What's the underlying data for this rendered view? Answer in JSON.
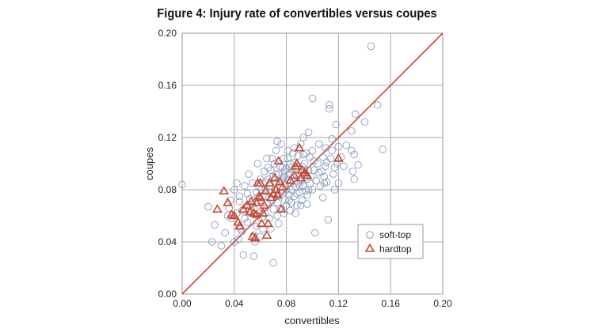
{
  "chart_data": {
    "type": "scatter",
    "title": "Figure 4: Injury rate of convertibles versus coupes",
    "xlabel": "convertibles",
    "ylabel": "coupes",
    "xlim": [
      0,
      0.2
    ],
    "ylim": [
      0,
      0.2
    ],
    "x_ticks": [
      "0.00",
      "0.04",
      "0.08",
      "0.12",
      "0.16",
      "0.20"
    ],
    "y_ticks": [
      "0.00",
      "0.04",
      "0.08",
      "0.12",
      "0.16",
      "0.20"
    ],
    "grid": true,
    "legend_position": "bottom-right",
    "reference_line": {
      "from": [
        0,
        0
      ],
      "to": [
        0.2,
        0.2
      ],
      "color": "#c8472f"
    },
    "series": [
      {
        "name": "soft-top",
        "marker": "circle",
        "color": "#8a9bbd",
        "points": [
          [
            0.0,
            0.084
          ],
          [
            0.02,
            0.067
          ],
          [
            0.023,
            0.04
          ],
          [
            0.025,
            0.053
          ],
          [
            0.03,
            0.037
          ],
          [
            0.035,
            0.06
          ],
          [
            0.037,
            0.072
          ],
          [
            0.038,
            0.058
          ],
          [
            0.04,
            0.08
          ],
          [
            0.042,
            0.085
          ],
          [
            0.042,
            0.062
          ],
          [
            0.044,
            0.071
          ],
          [
            0.045,
            0.05
          ],
          [
            0.046,
            0.064
          ],
          [
            0.047,
            0.03
          ],
          [
            0.048,
            0.058
          ],
          [
            0.05,
            0.077
          ],
          [
            0.05,
            0.068
          ],
          [
            0.051,
            0.092
          ],
          [
            0.052,
            0.073
          ],
          [
            0.053,
            0.062
          ],
          [
            0.054,
            0.085
          ],
          [
            0.055,
            0.029
          ],
          [
            0.055,
            0.045
          ],
          [
            0.056,
            0.07
          ],
          [
            0.057,
            0.078
          ],
          [
            0.058,
            0.1
          ],
          [
            0.058,
            0.06
          ],
          [
            0.059,
            0.082
          ],
          [
            0.06,
            0.088
          ],
          [
            0.06,
            0.067
          ],
          [
            0.061,
            0.058
          ],
          [
            0.062,
            0.075
          ],
          [
            0.063,
            0.094
          ],
          [
            0.064,
            0.08
          ],
          [
            0.064,
            0.062
          ],
          [
            0.065,
            0.104
          ],
          [
            0.065,
            0.07
          ],
          [
            0.066,
            0.088
          ],
          [
            0.067,
            0.078
          ],
          [
            0.067,
            0.058
          ],
          [
            0.068,
            0.095
          ],
          [
            0.068,
            0.083
          ],
          [
            0.069,
            0.072
          ],
          [
            0.07,
            0.09
          ],
          [
            0.07,
            0.065
          ],
          [
            0.07,
            0.024
          ],
          [
            0.071,
            0.1
          ],
          [
            0.071,
            0.08
          ],
          [
            0.072,
            0.11
          ],
          [
            0.072,
            0.085
          ],
          [
            0.073,
            0.07
          ],
          [
            0.073,
            0.06
          ],
          [
            0.074,
            0.092
          ],
          [
            0.074,
            0.075
          ],
          [
            0.075,
            0.098
          ],
          [
            0.075,
            0.082
          ],
          [
            0.076,
            0.066
          ],
          [
            0.076,
            0.115
          ],
          [
            0.077,
            0.088
          ],
          [
            0.077,
            0.078
          ],
          [
            0.078,
            0.104
          ],
          [
            0.078,
            0.09
          ],
          [
            0.079,
            0.072
          ],
          [
            0.079,
            0.084
          ],
          [
            0.08,
            0.096
          ],
          [
            0.08,
            0.08
          ],
          [
            0.08,
            0.068
          ],
          [
            0.081,
            0.088
          ],
          [
            0.081,
            0.11
          ],
          [
            0.082,
            0.076
          ],
          [
            0.082,
            0.092
          ],
          [
            0.083,
            0.085
          ],
          [
            0.083,
            0.1
          ],
          [
            0.084,
            0.07
          ],
          [
            0.084,
            0.08
          ],
          [
            0.085,
            0.094
          ],
          [
            0.085,
            0.088
          ],
          [
            0.086,
            0.075
          ],
          [
            0.086,
            0.112
          ],
          [
            0.087,
            0.082
          ],
          [
            0.087,
            0.096
          ],
          [
            0.088,
            0.09
          ],
          [
            0.088,
            0.068
          ],
          [
            0.089,
            0.085
          ],
          [
            0.089,
            0.106
          ],
          [
            0.09,
            0.078
          ],
          [
            0.09,
            0.092
          ],
          [
            0.091,
            0.115
          ],
          [
            0.091,
            0.087
          ],
          [
            0.092,
            0.072
          ],
          [
            0.092,
            0.098
          ],
          [
            0.093,
            0.083
          ],
          [
            0.093,
            0.12
          ],
          [
            0.094,
            0.09
          ],
          [
            0.094,
            0.1
          ],
          [
            0.095,
            0.079
          ],
          [
            0.095,
            0.108
          ],
          [
            0.096,
            0.088
          ],
          [
            0.096,
            0.069
          ],
          [
            0.097,
            0.095
          ],
          [
            0.097,
            0.124
          ],
          [
            0.098,
            0.085
          ],
          [
            0.098,
            0.105
          ],
          [
            0.099,
            0.09
          ],
          [
            0.1,
            0.15
          ],
          [
            0.1,
            0.08
          ],
          [
            0.1,
            0.11
          ],
          [
            0.101,
            0.095
          ],
          [
            0.102,
            0.047
          ],
          [
            0.103,
            0.087
          ],
          [
            0.104,
            0.1
          ],
          [
            0.105,
            0.115
          ],
          [
            0.106,
            0.083
          ],
          [
            0.107,
            0.094
          ],
          [
            0.108,
            0.074
          ],
          [
            0.108,
            0.105
          ],
          [
            0.109,
            0.09
          ],
          [
            0.11,
            0.112
          ],
          [
            0.11,
            0.098
          ],
          [
            0.111,
            0.086
          ],
          [
            0.112,
            0.057
          ],
          [
            0.113,
            0.145
          ],
          [
            0.114,
            0.104
          ],
          [
            0.115,
            0.11
          ],
          [
            0.116,
            0.092
          ],
          [
            0.117,
            0.08
          ],
          [
            0.118,
            0.13
          ],
          [
            0.119,
            0.1
          ],
          [
            0.12,
            0.113
          ],
          [
            0.122,
            0.105
          ],
          [
            0.124,
            0.098
          ],
          [
            0.126,
            0.114
          ],
          [
            0.131,
            0.094
          ],
          [
            0.132,
            0.088
          ],
          [
            0.13,
            0.11
          ],
          [
            0.135,
            0.099
          ],
          [
            0.132,
            0.107
          ],
          [
            0.13,
            0.125
          ],
          [
            0.133,
            0.138
          ],
          [
            0.14,
            0.132
          ],
          [
            0.15,
            0.145
          ],
          [
            0.154,
            0.111
          ],
          [
            0.113,
            0.142
          ],
          [
            0.12,
            0.085
          ],
          [
            0.145,
            0.19
          ],
          [
            0.082,
            0.072
          ],
          [
            0.086,
            0.101
          ],
          [
            0.079,
            0.094
          ],
          [
            0.09,
            0.083
          ],
          [
            0.094,
            0.095
          ],
          [
            0.076,
            0.087
          ],
          [
            0.088,
            0.077
          ],
          [
            0.084,
            0.097
          ],
          [
            0.072,
            0.092
          ],
          [
            0.064,
            0.086
          ],
          [
            0.061,
            0.08
          ],
          [
            0.058,
            0.074
          ],
          [
            0.054,
            0.069
          ],
          [
            0.05,
            0.055
          ],
          [
            0.046,
            0.048
          ],
          [
            0.043,
            0.042
          ],
          [
            0.04,
            0.04
          ],
          [
            0.033,
            0.047
          ],
          [
            0.036,
            0.066
          ],
          [
            0.044,
            0.075
          ],
          [
            0.048,
            0.083
          ],
          [
            0.052,
            0.065
          ],
          [
            0.057,
            0.052
          ],
          [
            0.062,
            0.05
          ],
          [
            0.066,
            0.097
          ],
          [
            0.069,
            0.104
          ],
          [
            0.073,
            0.117
          ],
          [
            0.077,
            0.097
          ],
          [
            0.081,
            0.104
          ],
          [
            0.085,
            0.108
          ],
          [
            0.089,
            0.098
          ],
          [
            0.093,
            0.107
          ],
          [
            0.097,
            0.08
          ],
          [
            0.101,
            0.102
          ],
          [
            0.105,
            0.093
          ],
          [
            0.109,
            0.085
          ],
          [
            0.111,
            0.101
          ],
          [
            0.115,
            0.119
          ],
          [
            0.117,
            0.097
          ],
          [
            0.096,
            0.076
          ],
          [
            0.091,
            0.068
          ],
          [
            0.087,
            0.062
          ],
          [
            0.083,
            0.064
          ],
          [
            0.078,
            0.062
          ],
          [
            0.074,
            0.054
          ],
          [
            0.068,
            0.05
          ],
          [
            0.06,
            0.044
          ],
          [
            0.056,
            0.04
          ]
        ]
      },
      {
        "name": "hardtop",
        "marker": "triangle",
        "color": "#c8472f",
        "points": [
          [
            0.027,
            0.065
          ],
          [
            0.032,
            0.079
          ],
          [
            0.035,
            0.07
          ],
          [
            0.038,
            0.061
          ],
          [
            0.04,
            0.06
          ],
          [
            0.043,
            0.055
          ],
          [
            0.044,
            0.052
          ],
          [
            0.047,
            0.065
          ],
          [
            0.05,
            0.068
          ],
          [
            0.052,
            0.063
          ],
          [
            0.053,
            0.071
          ],
          [
            0.054,
            0.044
          ],
          [
            0.055,
            0.062
          ],
          [
            0.056,
            0.043
          ],
          [
            0.057,
            0.07
          ],
          [
            0.057,
            0.061
          ],
          [
            0.058,
            0.085
          ],
          [
            0.059,
            0.075
          ],
          [
            0.06,
            0.074
          ],
          [
            0.06,
            0.085
          ],
          [
            0.061,
            0.054
          ],
          [
            0.062,
            0.062
          ],
          [
            0.063,
            0.068
          ],
          [
            0.064,
            0.079
          ],
          [
            0.065,
            0.045
          ],
          [
            0.066,
            0.054
          ],
          [
            0.067,
            0.085
          ],
          [
            0.068,
            0.074
          ],
          [
            0.07,
            0.077
          ],
          [
            0.071,
            0.089
          ],
          [
            0.072,
            0.08
          ],
          [
            0.073,
            0.076
          ],
          [
            0.074,
            0.102
          ],
          [
            0.075,
            0.086
          ],
          [
            0.076,
            0.065
          ],
          [
            0.077,
            0.082
          ],
          [
            0.083,
            0.087
          ],
          [
            0.086,
            0.091
          ],
          [
            0.087,
            0.098
          ],
          [
            0.088,
            0.1
          ],
          [
            0.09,
            0.112
          ],
          [
            0.091,
            0.089
          ],
          [
            0.092,
            0.095
          ],
          [
            0.094,
            0.093
          ],
          [
            0.096,
            0.091
          ],
          [
            0.12,
            0.104
          ]
        ]
      }
    ]
  }
}
